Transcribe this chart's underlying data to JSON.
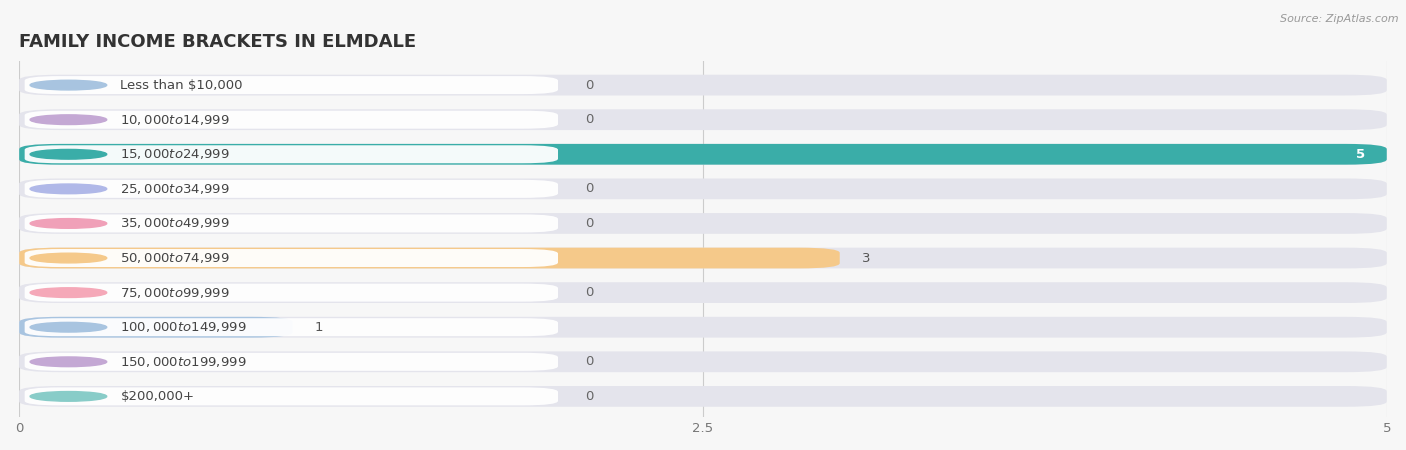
{
  "title": "FAMILY INCOME BRACKETS IN ELMDALE",
  "source": "Source: ZipAtlas.com",
  "categories": [
    "Less than $10,000",
    "$10,000 to $14,999",
    "$15,000 to $24,999",
    "$25,000 to $34,999",
    "$35,000 to $49,999",
    "$50,000 to $74,999",
    "$75,000 to $99,999",
    "$100,000 to $149,999",
    "$150,000 to $199,999",
    "$200,000+"
  ],
  "values": [
    0,
    0,
    5,
    0,
    0,
    3,
    0,
    1,
    0,
    0
  ],
  "bar_colors": [
    "#a8c4e0",
    "#c4a8d4",
    "#3aada8",
    "#b0b8e8",
    "#f0a0b8",
    "#f5c98a",
    "#f5a8b8",
    "#a8c4e0",
    "#c4a8d4",
    "#88ccc8"
  ],
  "background_color": "#f7f7f7",
  "bar_background_color": "#e4e4ec",
  "xlim": [
    0,
    5
  ],
  "xticks": [
    0,
    2.5,
    5
  ],
  "title_fontsize": 13,
  "label_fontsize": 9.5,
  "value_fontsize": 9.5
}
